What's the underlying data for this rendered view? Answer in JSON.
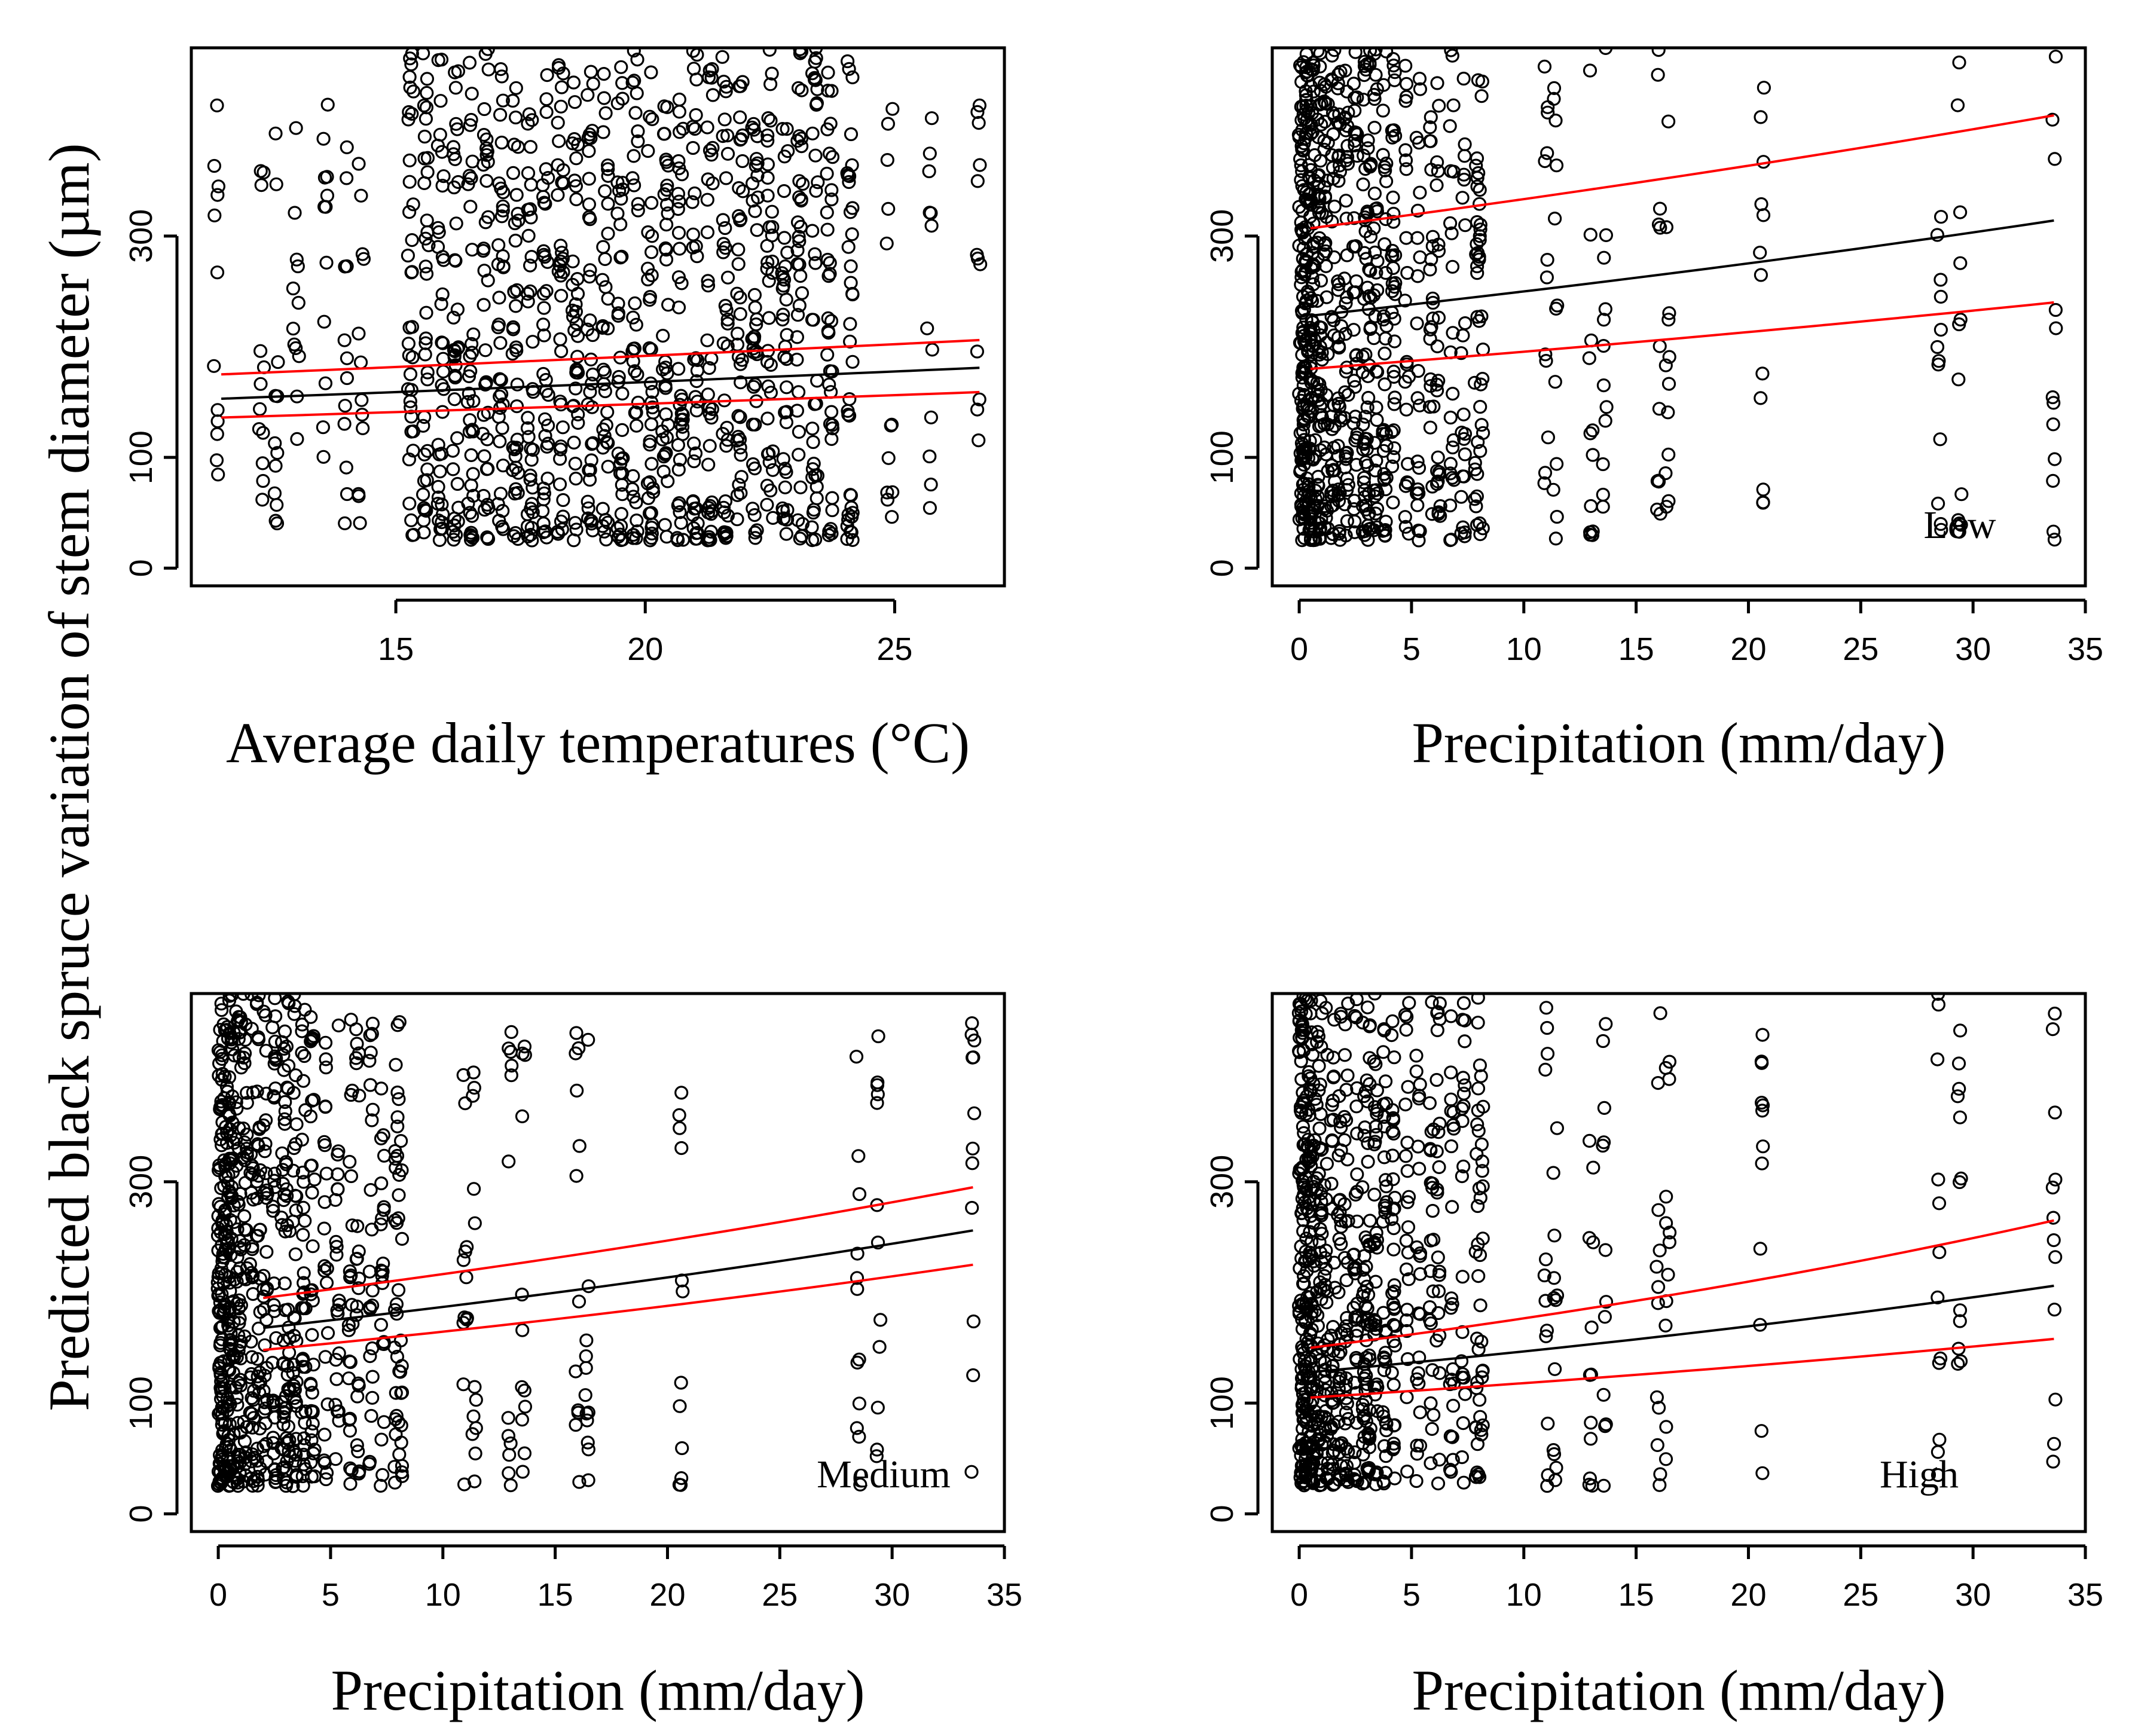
{
  "figure": {
    "ylabel": "Predicted black spruce variation of stem diameter (µm)"
  },
  "colors": {
    "fit": "#000000",
    "ci": "#ff0000",
    "points": "#000000"
  },
  "chart_data": [
    {
      "id": "panel-temperature",
      "type": "scatter",
      "title": "",
      "panel_label": "",
      "xlabel": "Average daily temperatures (°C)",
      "ylabel": "Predicted black spruce variation of stem diameter (µm)",
      "xlim": [
        10.9,
        27.2
      ],
      "ylim": [
        -16,
        470
      ],
      "xticks": [
        15,
        20,
        25
      ],
      "yticks": [
        0,
        100,
        300
      ],
      "x_clusters": [
        11.4,
        12.3,
        12.6,
        13.0,
        13.6,
        14.0,
        14.3,
        15.3,
        15.6,
        15.9,
        16.2,
        16.5,
        16.8,
        17.1,
        17.4,
        17.7,
        18.0,
        18.3,
        18.6,
        18.9,
        19.2,
        19.5,
        19.8,
        20.1,
        20.4,
        20.7,
        21.0,
        21.3,
        21.6,
        21.9,
        22.2,
        22.5,
        22.8,
        23.1,
        23.4,
        23.7,
        24.1,
        24.9,
        25.7,
        26.7
      ],
      "fit": {
        "x": [
          11.5,
          26.7
        ],
        "y": [
          153,
          181
        ]
      },
      "ci_upper": {
        "x": [
          11.5,
          26.7
        ],
        "y": [
          175,
          206
        ]
      },
      "ci_lower": {
        "x": [
          11.5,
          26.7
        ],
        "y": [
          136,
          159
        ]
      }
    },
    {
      "id": "panel-low",
      "type": "scatter",
      "title": "",
      "panel_label": "Low",
      "xlabel": "Precipitation (mm/day)",
      "ylabel": "",
      "xlim": [
        -1.2,
        35.0
      ],
      "ylim": [
        -16,
        470
      ],
      "xticks": [
        0,
        5,
        10,
        15,
        20,
        25,
        30,
        35
      ],
      "yticks": [
        0,
        100,
        300
      ],
      "x_clusters": [
        0.1,
        0.2,
        0.4,
        0.6,
        0.9,
        1.2,
        1.5,
        1.8,
        2.1,
        2.5,
        2.9,
        3.1,
        3.4,
        3.8,
        4.2,
        4.8,
        5.3,
        5.9,
        6.2,
        6.8,
        7.3,
        7.9,
        8.1,
        11.0,
        11.4,
        13.0,
        13.6,
        16.0,
        16.4,
        20.6,
        28.5,
        29.4,
        33.6
      ],
      "fit": {
        "x": [
          0.5,
          33.6
        ],
        "y": [
          228,
          314
        ]
      },
      "ci_upper": {
        "x": [
          0.5,
          33.6
        ],
        "y": [
          307,
          409
        ]
      },
      "ci_lower": {
        "x": [
          0.5,
          33.6
        ],
        "y": [
          180,
          240
        ]
      }
    },
    {
      "id": "panel-medium",
      "type": "scatter",
      "title": "",
      "panel_label": "Medium",
      "xlabel": "Precipitation (mm/day)",
      "ylabel": "",
      "xlim": [
        -1.2,
        35.0
      ],
      "ylim": [
        -16,
        470
      ],
      "xticks": [
        0,
        5,
        10,
        15,
        20,
        25,
        30,
        35
      ],
      "yticks": [
        0,
        100,
        300
      ],
      "x_clusters": [
        0.1,
        0.2,
        0.4,
        0.6,
        0.9,
        1.2,
        1.5,
        1.8,
        2.1,
        2.5,
        2.9,
        3.1,
        3.4,
        3.8,
        4.2,
        4.8,
        5.3,
        5.9,
        6.2,
        6.8,
        7.3,
        7.9,
        8.1,
        11.0,
        11.4,
        13.0,
        13.6,
        16.0,
        16.4,
        20.6,
        28.5,
        29.4,
        33.6
      ],
      "fit": {
        "x": [
          2.0,
          33.6
        ],
        "y": [
          168,
          256
        ]
      },
      "ci_upper": {
        "x": [
          2.0,
          33.6
        ],
        "y": [
          195,
          295
        ]
      },
      "ci_lower": {
        "x": [
          2.0,
          33.6
        ],
        "y": [
          148,
          225
        ]
      }
    },
    {
      "id": "panel-high",
      "type": "scatter",
      "title": "",
      "panel_label": "High",
      "xlabel": "Precipitation (mm/day)",
      "ylabel": "",
      "xlim": [
        -1.2,
        35.0
      ],
      "ylim": [
        -16,
        470
      ],
      "xticks": [
        0,
        5,
        10,
        15,
        20,
        25,
        30,
        35
      ],
      "yticks": [
        0,
        100,
        300
      ],
      "x_clusters": [
        0.1,
        0.2,
        0.4,
        0.6,
        0.9,
        1.2,
        1.5,
        1.8,
        2.1,
        2.5,
        2.9,
        3.1,
        3.4,
        3.8,
        4.2,
        4.8,
        5.3,
        5.9,
        6.2,
        6.8,
        7.3,
        7.9,
        8.1,
        11.0,
        11.4,
        13.0,
        13.6,
        16.0,
        16.4,
        20.6,
        28.5,
        29.4,
        33.6
      ],
      "fit": {
        "x": [
          0.5,
          33.6
        ],
        "y": [
          128,
          206
        ]
      },
      "ci_upper": {
        "x": [
          0.5,
          33.6
        ],
        "y": [
          150,
          265
        ]
      },
      "ci_lower": {
        "x": [
          0.5,
          33.6
        ],
        "y": [
          105,
          158
        ]
      }
    }
  ]
}
